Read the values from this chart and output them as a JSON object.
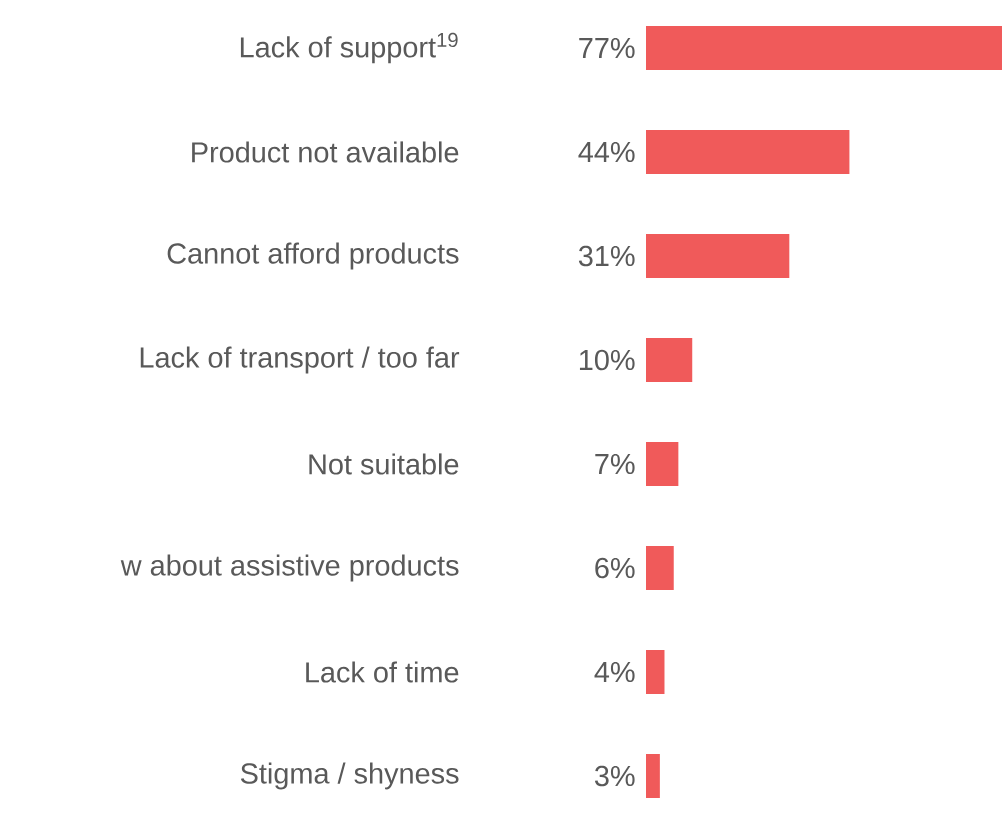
{
  "chart_data": {
    "type": "bar",
    "orientation": "horizontal",
    "categories": [
      "Lack of support$^{19}$",
      "Product not available",
      "Cannot afford products",
      "Lack of transport / too far",
      "Not suitable",
      "w about assistive products",
      "Lack of time",
      "Stigma / shyness"
    ],
    "values": [
      77,
      44,
      31,
      10,
      7,
      6,
      4,
      3
    ],
    "value_labels": [
      "77%",
      "44%",
      "31%",
      "10%",
      "7%",
      "6%",
      "4%",
      "3%"
    ],
    "color": "#f05a5a"
  }
}
